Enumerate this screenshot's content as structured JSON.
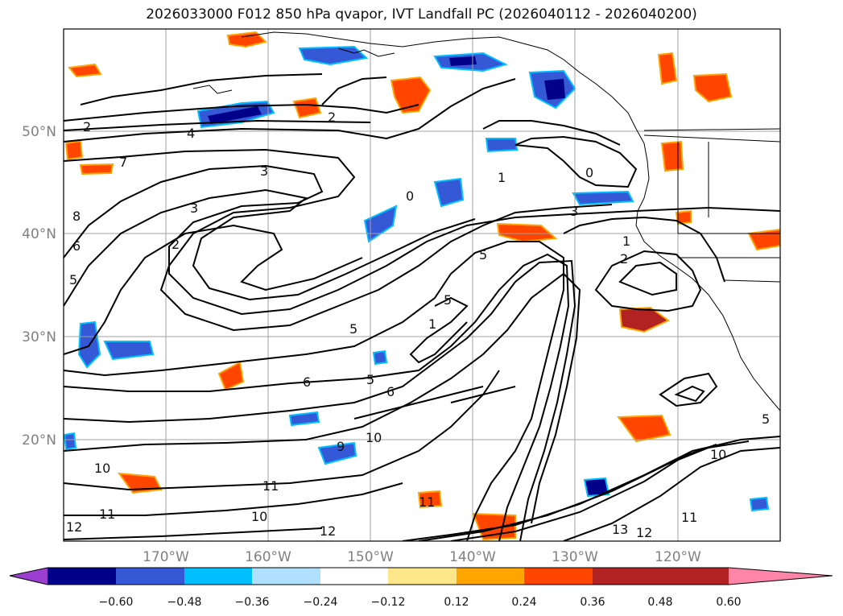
{
  "title": "2026033000 F012 850 hPa qvapor, IVT Landfall PC (2026040112 - 2026040200)",
  "lat_ticks": [
    "50°N",
    "40°N",
    "30°N",
    "20°N"
  ],
  "lon_ticks": [
    "170°W",
    "160°W",
    "150°W",
    "140°W",
    "130°W",
    "120°W"
  ],
  "colorbar": {
    "colors": [
      "#9b3fd1",
      "#00008b",
      "#3558d6",
      "#00bfff",
      "#b0e0ff",
      "#ffffff",
      "#ffe68a",
      "#ffa500",
      "#ff4500",
      "#b22222",
      "#ff85a8"
    ],
    "tick_labels": [
      "−0.60",
      "−0.48",
      "−0.36",
      "−0.24",
      "−0.12",
      "0.12",
      "0.24",
      "0.36",
      "0.48",
      "0.60"
    ]
  },
  "contour_labels": [
    "2",
    "4",
    "2",
    "7",
    "3",
    "2",
    "8",
    "6",
    "5",
    "1",
    "3",
    "0",
    "1",
    "0",
    "3",
    "5",
    "1",
    "2",
    "5",
    "5",
    "6",
    "5",
    "6",
    "9",
    "10",
    "10",
    "11",
    "11",
    "10",
    "12",
    "12",
    "11",
    "13",
    "12",
    "11",
    "10",
    "5"
  ]
}
